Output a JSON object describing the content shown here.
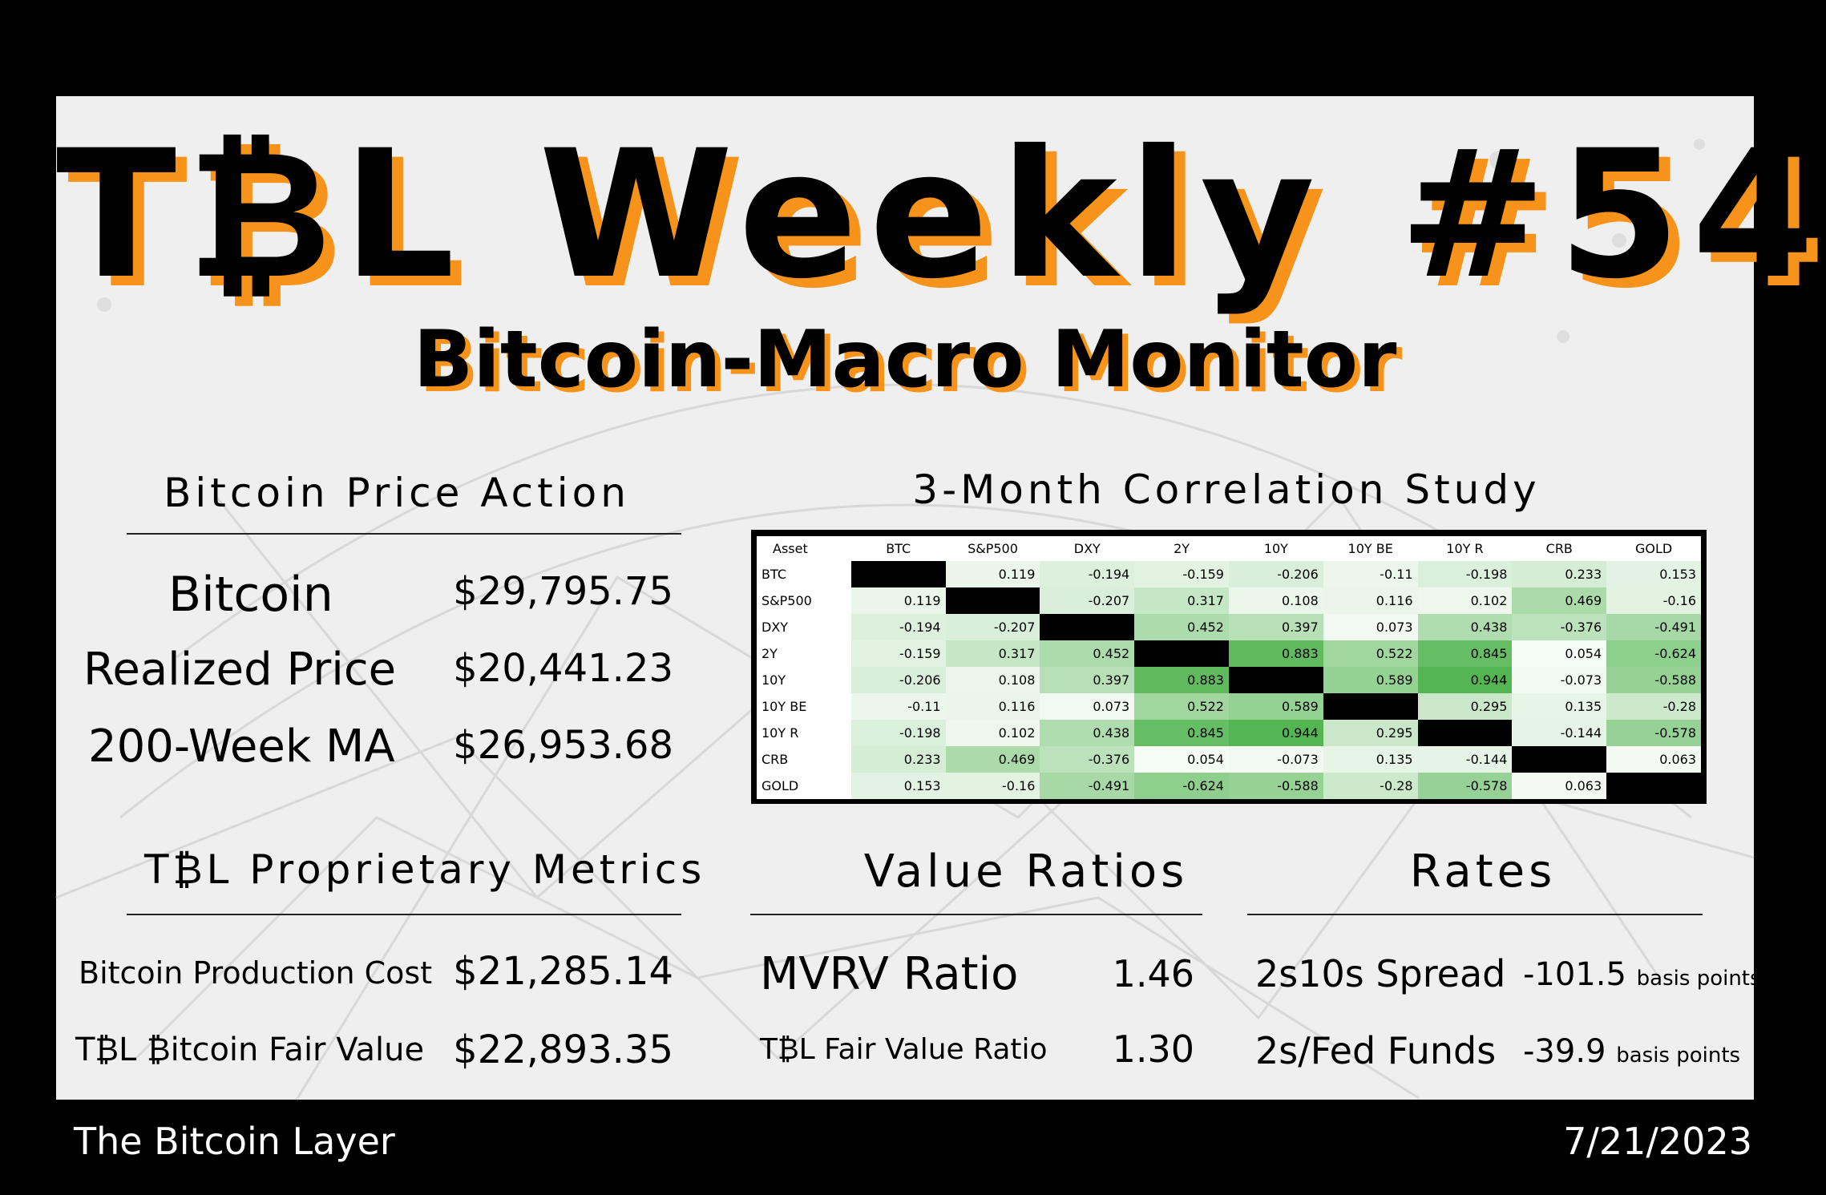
{
  "header": {
    "title": "T₿L Weekly #54",
    "subtitle": "Bitcoin-Macro Monitor"
  },
  "colors": {
    "accent": "#f7931a",
    "panel": "#efefef",
    "frame": "#000000"
  },
  "price_action": {
    "heading": "Bitcoin Price Action",
    "rows": [
      {
        "label": "Bitcoin",
        "value": "$29,795.75"
      },
      {
        "label": "Realized Price",
        "value": "$20,441.23"
      },
      {
        "label": "200-Week MA",
        "value": "$26,953.68"
      }
    ]
  },
  "correlation": {
    "heading": "3-Month Correlation Study",
    "columns": [
      "Asset",
      "BTC",
      "S&P500",
      "DXY",
      "2Y",
      "10Y",
      "10Y BE",
      "10Y R",
      "CRB",
      "GOLD"
    ],
    "rows": [
      {
        "asset": "BTC",
        "values": [
          "",
          "0.119",
          "-0.194",
          "-0.159",
          "-0.206",
          "-0.11",
          "-0.198",
          "0.233",
          "0.153"
        ]
      },
      {
        "asset": "S&P500",
        "values": [
          "0.119",
          "",
          "-0.207",
          "0.317",
          "0.108",
          "0.116",
          "0.102",
          "0.469",
          "-0.16"
        ]
      },
      {
        "asset": "DXY",
        "values": [
          "-0.194",
          "-0.207",
          "",
          "0.452",
          "0.397",
          "0.073",
          "0.438",
          "-0.376",
          "-0.491"
        ]
      },
      {
        "asset": "2Y",
        "values": [
          "-0.159",
          "0.317",
          "0.452",
          "",
          "0.883",
          "0.522",
          "0.845",
          "0.054",
          "-0.624"
        ]
      },
      {
        "asset": "10Y",
        "values": [
          "-0.206",
          "0.108",
          "0.397",
          "0.883",
          "",
          "0.589",
          "0.944",
          "-0.073",
          "-0.588"
        ]
      },
      {
        "asset": "10Y BE",
        "values": [
          "-0.11",
          "0.116",
          "0.073",
          "0.522",
          "0.589",
          "",
          "0.295",
          "0.135",
          "-0.28"
        ]
      },
      {
        "asset": "10Y R",
        "values": [
          "-0.198",
          "0.102",
          "0.438",
          "0.845",
          "0.944",
          "0.295",
          "",
          "-0.144",
          "-0.578"
        ]
      },
      {
        "asset": "CRB",
        "values": [
          "0.233",
          "0.469",
          "-0.376",
          "0.054",
          "-0.073",
          "0.135",
          "-0.144",
          "",
          "0.063"
        ]
      },
      {
        "asset": "GOLD",
        "values": [
          "0.153",
          "-0.16",
          "-0.491",
          "-0.624",
          "-0.588",
          "-0.28",
          "-0.578",
          "0.063",
          ""
        ]
      }
    ]
  },
  "proprietary": {
    "heading": "T₿L Proprietary Metrics",
    "rows": [
      {
        "label": "Bitcoin Production Cost",
        "value": "$21,285.14"
      },
      {
        "label": "T₿L ₿itcoin Fair Value",
        "value": "$22,893.35"
      }
    ]
  },
  "value_ratios": {
    "heading": "Value Ratios",
    "rows": [
      {
        "label": "MVRV Ratio",
        "value": "1.46"
      },
      {
        "label": "T₿L Fair Value Ratio",
        "value": "1.30"
      }
    ]
  },
  "rates": {
    "heading": "Rates",
    "rows": [
      {
        "label": "2s10s Spread",
        "value": "-101.5",
        "unit": "basis points"
      },
      {
        "label": "2s/Fed Funds",
        "value": "-39.9",
        "unit": "basis points"
      }
    ]
  },
  "footer": {
    "brand": "The Bitcoin Layer",
    "date": "7/21/2023"
  }
}
